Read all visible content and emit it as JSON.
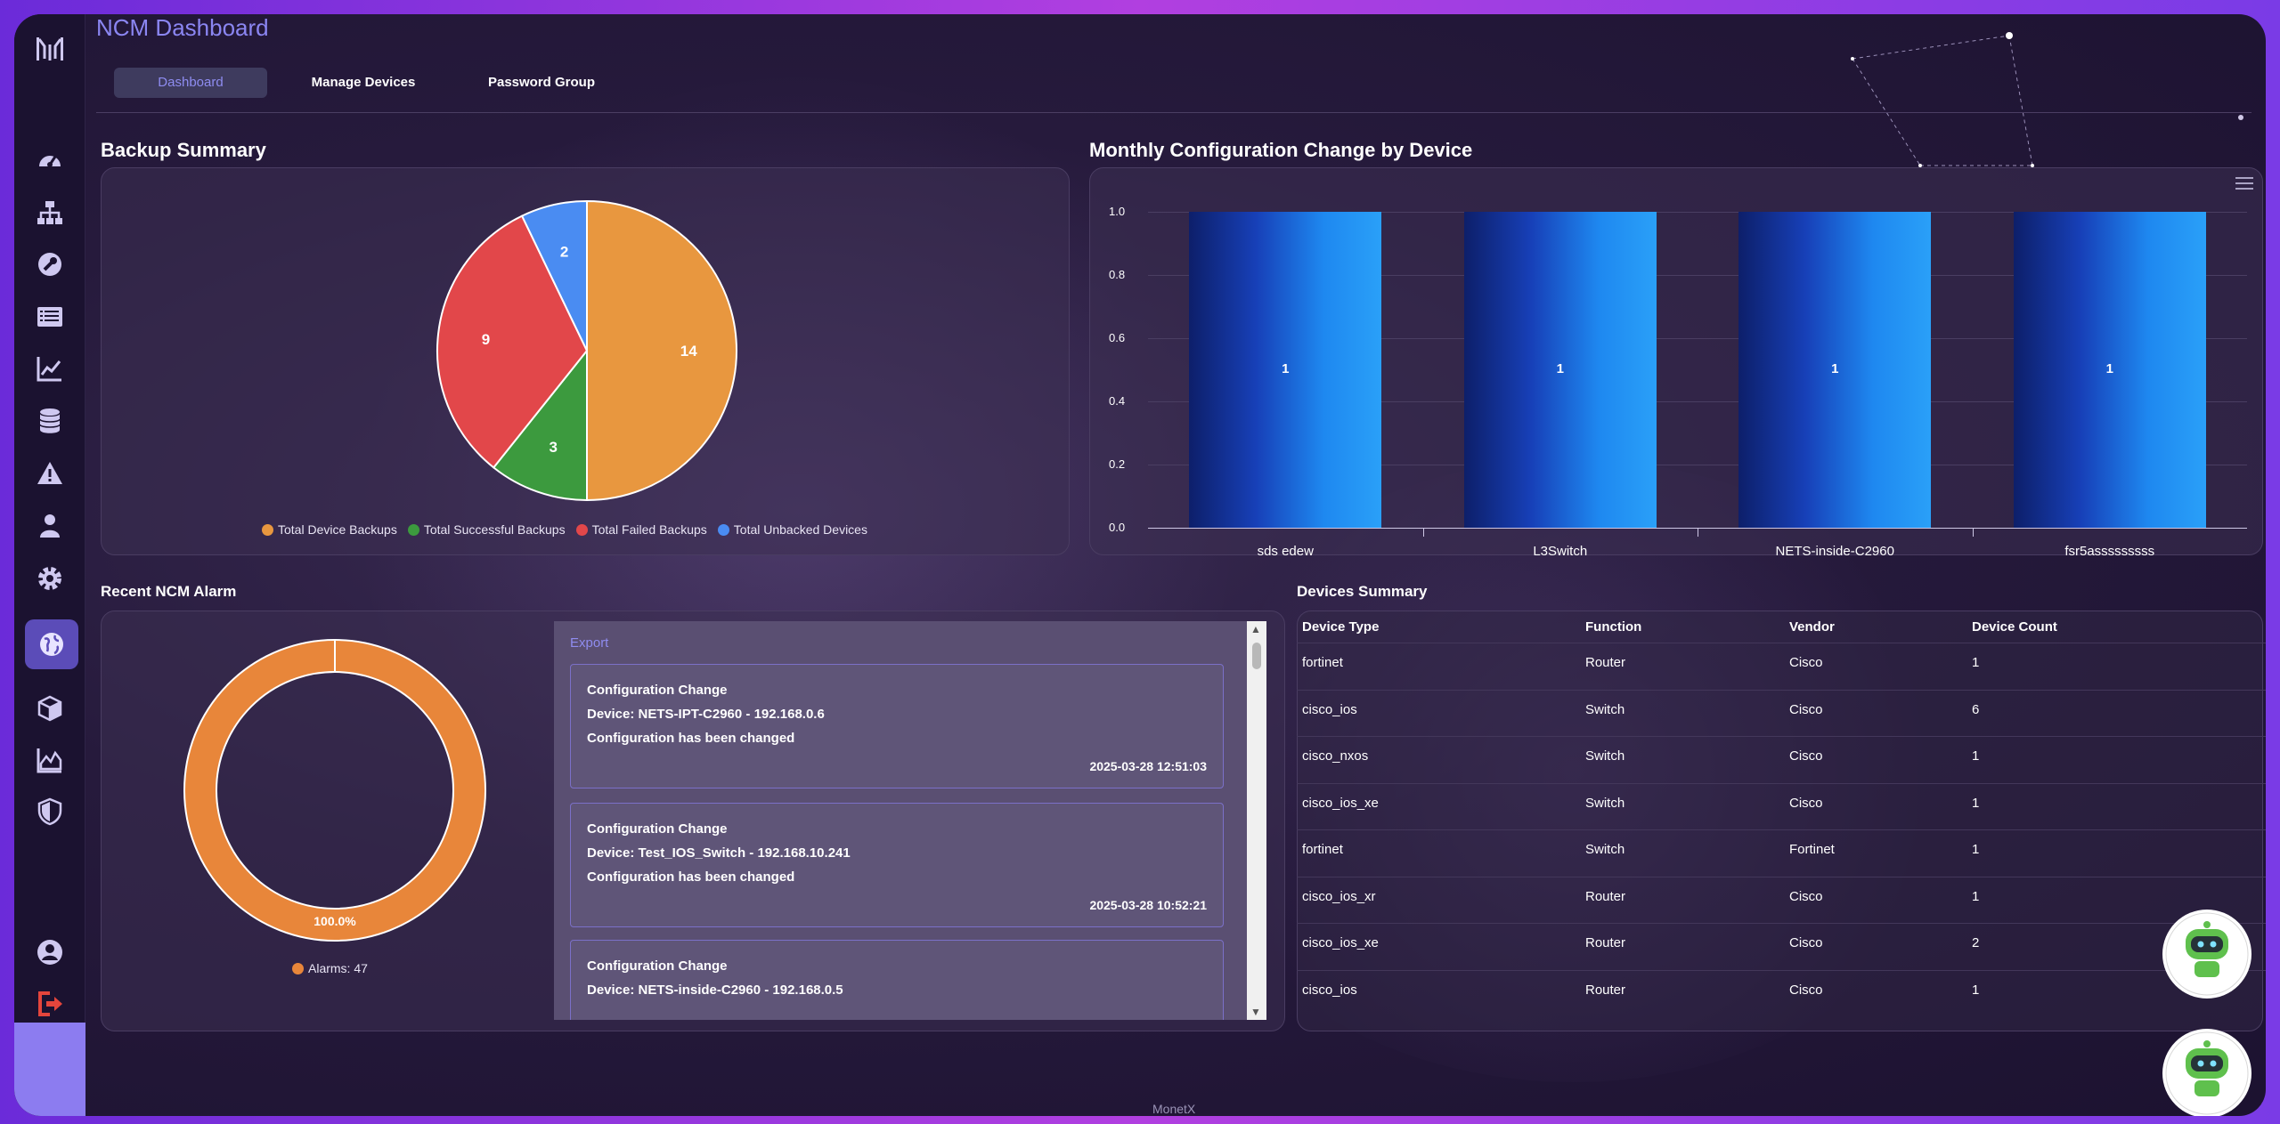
{
  "app": {
    "title": "NCM Dashboard",
    "footer": "MonetX"
  },
  "tabs": [
    {
      "label": "Dashboard",
      "active": true
    },
    {
      "label": "Manage Devices",
      "active": false
    },
    {
      "label": "Password Group",
      "active": false
    }
  ],
  "sidebar": {
    "items": [
      {
        "icon": "gauge-icon"
      },
      {
        "icon": "network-icon"
      },
      {
        "icon": "wrench-icon"
      },
      {
        "icon": "list-icon"
      },
      {
        "icon": "line-chart-icon"
      },
      {
        "icon": "database-icon"
      },
      {
        "icon": "warning-icon"
      },
      {
        "icon": "user-icon"
      },
      {
        "icon": "gear-icon"
      },
      {
        "icon": "globe-icon",
        "active": true
      },
      {
        "icon": "cube-icon"
      },
      {
        "icon": "area-chart-icon"
      },
      {
        "icon": "shield-icon"
      }
    ],
    "bottom": [
      {
        "icon": "account-circle-icon"
      },
      {
        "icon": "logout-icon"
      }
    ]
  },
  "backup_summary": {
    "title": "Backup Summary",
    "legend": [
      "Total Device Backups",
      "Total Successful Backups",
      "Total Failed Backups",
      "Total Unbacked Devices"
    ]
  },
  "monthly_changes": {
    "title": "Monthly Configuration Change by Device"
  },
  "recent_alarm": {
    "title": "Recent NCM Alarm",
    "donut_label": "100.0%",
    "legend": "Alarms: 47",
    "export_label": "Export",
    "alarms": [
      {
        "type": "Configuration Change",
        "device": "Device: NETS-IPT-C2960 - 192.168.0.6",
        "message": "Configuration has been changed",
        "time": "2025-03-28 12:51:03"
      },
      {
        "type": "Configuration Change",
        "device": "Device: Test_IOS_Switch - 192.168.10.241",
        "message": "Configuration has been changed",
        "time": "2025-03-28 10:52:21"
      },
      {
        "type": "Configuration Change",
        "device": "Device: NETS-inside-C2960 - 192.168.0.5",
        "message": "",
        "time": ""
      }
    ]
  },
  "devices_summary": {
    "title": "Devices Summary",
    "columns": [
      "Device Type",
      "Function",
      "Vendor",
      "Device Count"
    ],
    "rows": [
      [
        "fortinet",
        "Router",
        "Cisco",
        "1"
      ],
      [
        "cisco_ios",
        "Switch",
        "Cisco",
        "6"
      ],
      [
        "cisco_nxos",
        "Switch",
        "Cisco",
        "1"
      ],
      [
        "cisco_ios_xe",
        "Switch",
        "Cisco",
        "1"
      ],
      [
        "fortinet",
        "Switch",
        "Fortinet",
        "1"
      ],
      [
        "cisco_ios_xr",
        "Router",
        "Cisco",
        "1"
      ],
      [
        "cisco_ios_xe",
        "Router",
        "Cisco",
        "2"
      ],
      [
        "cisco_ios",
        "Router",
        "Cisco",
        "1"
      ]
    ]
  },
  "colors": {
    "accent": "#8b86f2",
    "orange": "#e8973f",
    "green": "#3c9a3e",
    "red": "#e2474a",
    "blue": "#4a8cf2",
    "donut": "#e8863a"
  },
  "chart_data": [
    {
      "type": "pie",
      "title": "Backup Summary",
      "categories": [
        "Total Device Backups",
        "Total Successful Backups",
        "Total Failed Backups",
        "Total Unbacked Devices"
      ],
      "values": [
        14,
        3,
        9,
        2
      ],
      "colors": [
        "#e8973f",
        "#3c9a3e",
        "#e2474a",
        "#4a8cf2"
      ],
      "legend": "bottom"
    },
    {
      "type": "bar",
      "title": "Monthly Configuration Change by Device",
      "categories": [
        "sds edew",
        "L3Switch",
        "NETS-inside-C2960",
        "fsr5asssssssss"
      ],
      "values": [
        1,
        1,
        1,
        1
      ],
      "ylim": [
        0,
        1
      ],
      "yticks": [
        "0.0",
        "0.2",
        "0.4",
        "0.6",
        "0.8",
        "1.0"
      ],
      "grid": true
    },
    {
      "type": "pie",
      "title": "Recent NCM Alarm",
      "categories": [
        "Alarms"
      ],
      "values": [
        47
      ],
      "percent_labels": [
        "100.0%"
      ],
      "legend": "bottom"
    }
  ]
}
